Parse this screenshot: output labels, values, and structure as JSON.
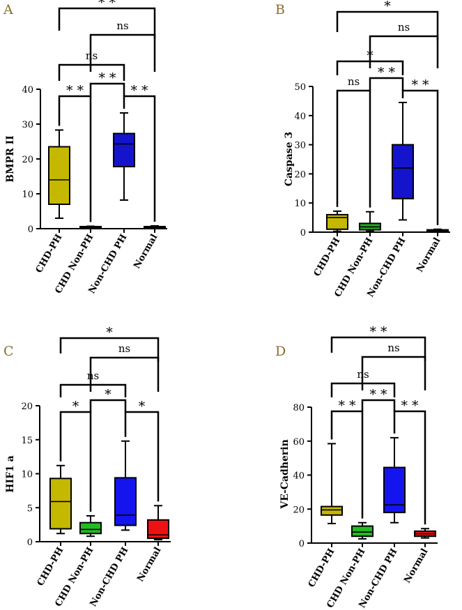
{
  "chart_data": [
    {
      "panel_label": "A",
      "type": "box",
      "ylabel": "BMPR II",
      "ylim": [
        0,
        40
      ],
      "yticks": [
        0,
        10,
        20,
        30,
        40
      ],
      "categories": [
        "CHD-PH",
        "CHD Non-PH",
        "Non-CHD PH",
        "Normal"
      ],
      "colors": [
        "#c5b800",
        "#3a8c1a",
        "#1414cc",
        "#8b8b8b"
      ],
      "boxes": [
        {
          "min": 3,
          "q1": 7,
          "median": 14,
          "q3": 23.5,
          "max": 28.3
        },
        {
          "min": 0.3,
          "q1": 0.4,
          "median": 0.5,
          "q3": 0.6,
          "max": 0.7
        },
        {
          "min": 8.2,
          "q1": 17.8,
          "median": 24.3,
          "q3": 27.3,
          "max": 33.2
        },
        {
          "min": 0.3,
          "q1": 0.4,
          "median": 0.5,
          "q3": 0.6,
          "max": 0.8
        }
      ],
      "significance": [
        {
          "from": 0,
          "to": 1,
          "label": "**",
          "level": 0
        },
        {
          "from": 1,
          "to": 2,
          "label": "**",
          "level": 1
        },
        {
          "from": 2,
          "to": 3,
          "label": "**",
          "level": 0
        },
        {
          "from": 0,
          "to": 2,
          "label": "ns",
          "level": 2
        },
        {
          "from": 1,
          "to": 3,
          "label": "ns",
          "level": 3
        },
        {
          "from": 0,
          "to": 3,
          "label": "**",
          "level": 4
        }
      ]
    },
    {
      "panel_label": "B",
      "type": "box",
      "ylabel": "Caspase 3",
      "ylim": [
        0,
        50
      ],
      "yticks": [
        0,
        10,
        20,
        30,
        40,
        50
      ],
      "categories": [
        "CHD-PH",
        "CHD Non-PH",
        "Non-CHD PH",
        "Normal"
      ],
      "colors": [
        "#c5b800",
        "#22aa22",
        "#1414cc",
        "#8b8b8b"
      ],
      "boxes": [
        {
          "min": 0.3,
          "q1": 1,
          "median": 5,
          "q3": 6,
          "max": 7.2
        },
        {
          "min": 0.3,
          "q1": 0.8,
          "median": 1.8,
          "q3": 3,
          "max": 7
        },
        {
          "min": 4.2,
          "q1": 11.5,
          "median": 22,
          "q3": 30,
          "max": 44.5
        },
        {
          "min": 0.2,
          "q1": 0.4,
          "median": 0.6,
          "q3": 0.8,
          "max": 1
        }
      ],
      "significance": [
        {
          "from": 0,
          "to": 1,
          "label": "ns",
          "level": 0
        },
        {
          "from": 1,
          "to": 2,
          "label": "**",
          "level": 1
        },
        {
          "from": 2,
          "to": 3,
          "label": "**",
          "level": 0
        },
        {
          "from": 0,
          "to": 2,
          "label": "*",
          "level": 2
        },
        {
          "from": 1,
          "to": 3,
          "label": "ns",
          "level": 3
        },
        {
          "from": 0,
          "to": 3,
          "label": "*",
          "level": 4
        }
      ]
    },
    {
      "panel_label": "C",
      "type": "box",
      "ylabel": "HIF1 a",
      "ylim": [
        0,
        20
      ],
      "yticks": [
        0,
        5,
        10,
        15,
        20
      ],
      "categories": [
        "CHD-PH",
        "CHD Non-PH",
        "Non-CHD PH",
        "Normal"
      ],
      "colors": [
        "#c5b800",
        "#22bb22",
        "#1414ee",
        "#ee1111"
      ],
      "boxes": [
        {
          "min": 1.2,
          "q1": 1.9,
          "median": 5.9,
          "q3": 9.3,
          "max": 11.2
        },
        {
          "min": 0.8,
          "q1": 1.2,
          "median": 1.8,
          "q3": 2.8,
          "max": 3.8
        },
        {
          "min": 1.7,
          "q1": 2.4,
          "median": 3.9,
          "q3": 9.4,
          "max": 14.8
        },
        {
          "min": 0.3,
          "q1": 0.5,
          "median": 1,
          "q3": 3.2,
          "max": 5.3
        }
      ],
      "significance": [
        {
          "from": 0,
          "to": 1,
          "label": "*",
          "level": 0
        },
        {
          "from": 1,
          "to": 2,
          "label": "*",
          "level": 1
        },
        {
          "from": 2,
          "to": 3,
          "label": "*",
          "level": 0
        },
        {
          "from": 0,
          "to": 2,
          "label": "ns",
          "level": 2
        },
        {
          "from": 1,
          "to": 3,
          "label": "ns",
          "level": 3
        },
        {
          "from": 0,
          "to": 3,
          "label": "*",
          "level": 4
        }
      ]
    },
    {
      "panel_label": "D",
      "type": "box",
      "ylabel": "VE-Cadherin",
      "ylim": [
        0,
        80
      ],
      "yticks": [
        0,
        20,
        40,
        60,
        80
      ],
      "categories": [
        "CHD-PH",
        "CHD Non-PH",
        "Non-CHD PH",
        "Normal"
      ],
      "colors": [
        "#c5b800",
        "#22bb22",
        "#1414ee",
        "#ee1111"
      ],
      "boxes": [
        {
          "min": 11.5,
          "q1": 16.5,
          "median": 19.5,
          "q3": 21.5,
          "max": 58.5
        },
        {
          "min": 2.5,
          "q1": 4,
          "median": 6.5,
          "q3": 10,
          "max": 12
        },
        {
          "min": 12,
          "q1": 18,
          "median": 22.5,
          "q3": 44.5,
          "max": 62
        },
        {
          "min": 3,
          "q1": 4,
          "median": 5.5,
          "q3": 7,
          "max": 8.5
        }
      ],
      "significance": [
        {
          "from": 0,
          "to": 1,
          "label": "**",
          "level": 0
        },
        {
          "from": 1,
          "to": 2,
          "label": "**",
          "level": 1
        },
        {
          "from": 2,
          "to": 3,
          "label": "**",
          "level": 0
        },
        {
          "from": 0,
          "to": 2,
          "label": "ns",
          "level": 2
        },
        {
          "from": 1,
          "to": 3,
          "label": "ns",
          "level": 3
        },
        {
          "from": 0,
          "to": 3,
          "label": "**",
          "level": 4
        }
      ]
    }
  ]
}
